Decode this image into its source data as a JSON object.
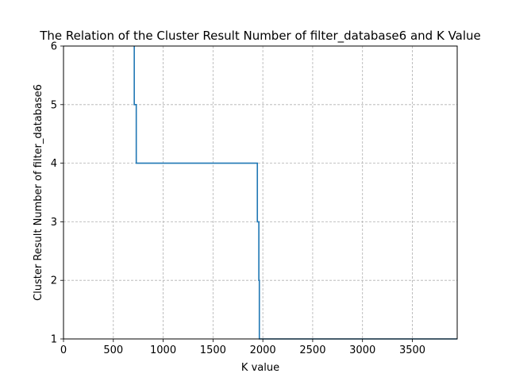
{
  "chart_data": {
    "type": "line",
    "title": "The Relation of the Cluster Result Number of filter_database6 and K Value",
    "xlabel": "K value",
    "ylabel": "Cluster Result Number of filter_database6",
    "xlim": [
      0,
      3950
    ],
    "ylim": [
      1,
      6
    ],
    "xticks": [
      0,
      500,
      1000,
      1500,
      2000,
      2500,
      3000,
      3500
    ],
    "xtick_labels": [
      "0",
      "500",
      "1000",
      "1500",
      "2000",
      "2500",
      "3000",
      "3500"
    ],
    "yticks": [
      1,
      2,
      3,
      4,
      5,
      6
    ],
    "ytick_labels": [
      "1",
      "2",
      "3",
      "4",
      "5",
      "6"
    ],
    "grid": true,
    "grid_style": "dashed",
    "line_style": "step",
    "series": [
      {
        "color": "#1f77b4",
        "x": [
          710,
          710,
          730,
          730,
          1945,
          1945,
          1960,
          1960,
          1965,
          1965,
          3950
        ],
        "y": [
          6,
          5,
          5,
          4,
          4,
          3,
          3,
          2,
          2,
          1,
          1
        ]
      }
    ]
  }
}
